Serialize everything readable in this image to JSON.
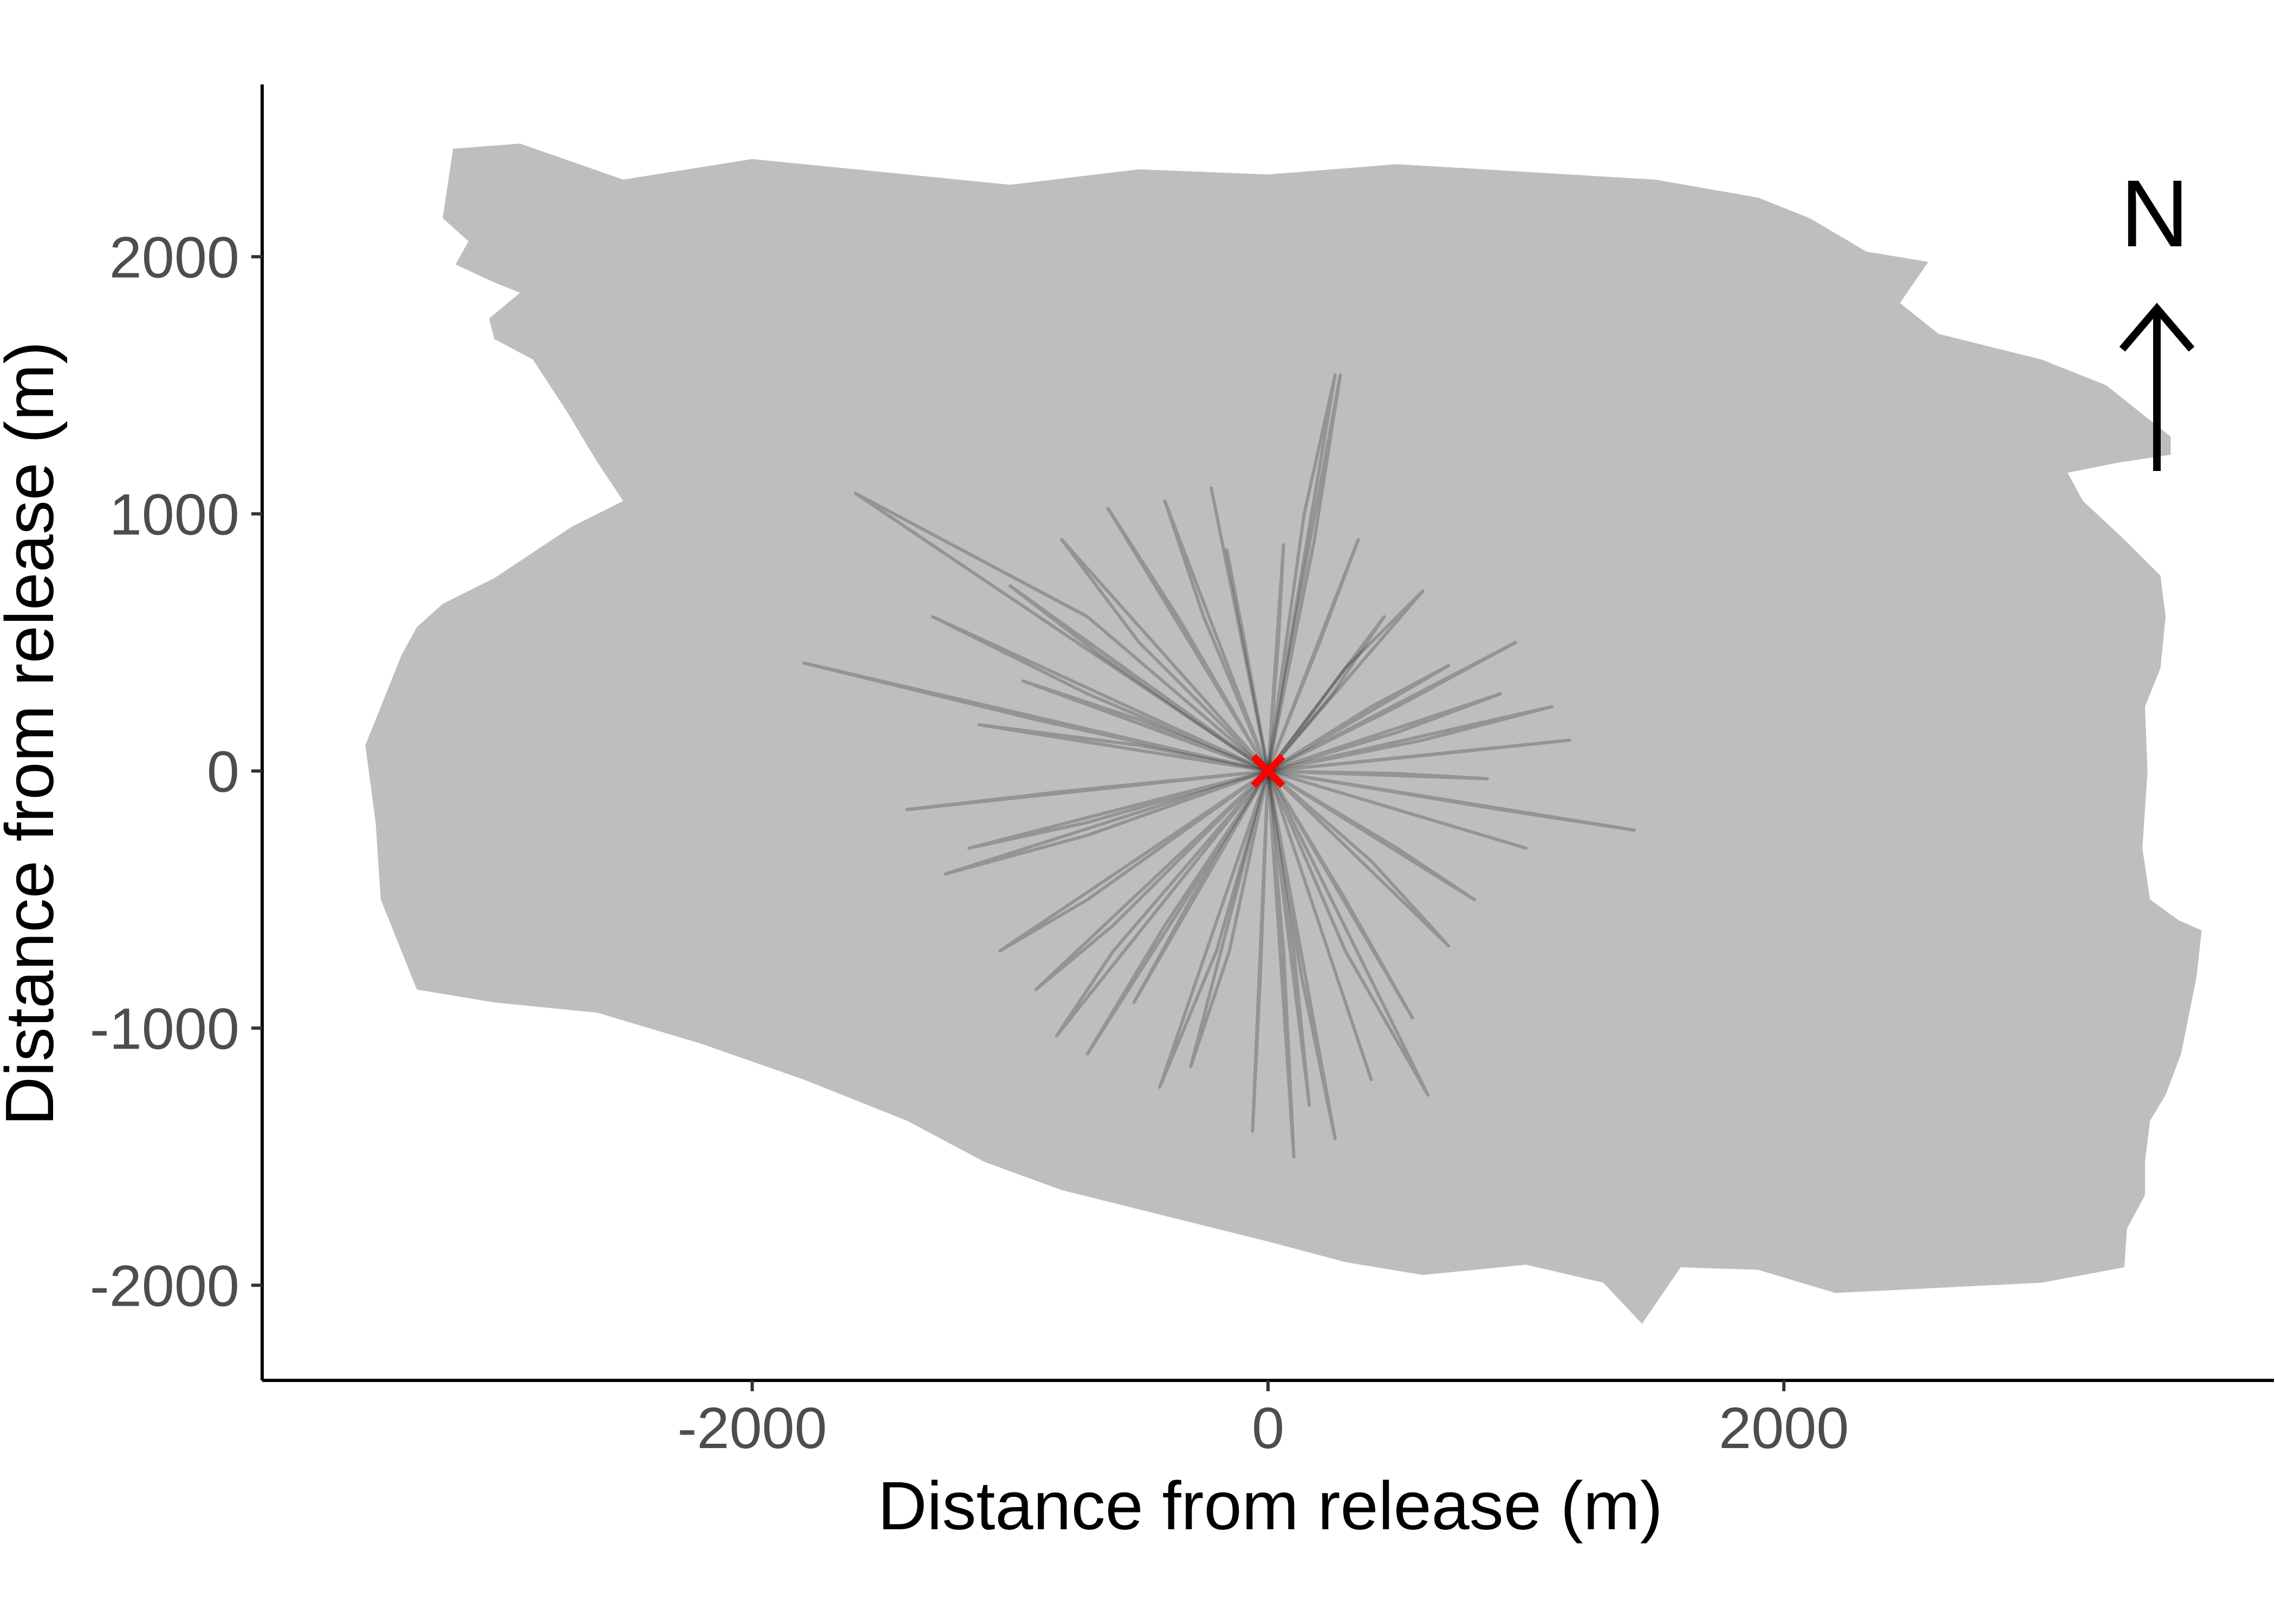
{
  "chart_data": {
    "type": "line",
    "title": "",
    "xlabel": "Distance from release (m)",
    "ylabel": "Distance from release (m)",
    "xlim": [
      -3900,
      3900
    ],
    "ylim": [
      -2370,
      2670
    ],
    "x_ticks": [
      -2000,
      0,
      2000
    ],
    "x_tick_labels": [
      "-2000",
      "0",
      "2000"
    ],
    "y_ticks": [
      -2000,
      -1000,
      0,
      1000,
      2000
    ],
    "y_tick_labels": [
      "-2000",
      "-1000",
      "0",
      "1000",
      "2000"
    ],
    "grid": false,
    "legend": "none",
    "release_point": {
      "x": 0,
      "y": 0,
      "marker": "x",
      "color": "#ff0000"
    },
    "north_arrow": {
      "label": "N",
      "placement": "top-right"
    },
    "island_outline": [
      [
        -3160,
        2420
      ],
      [
        -2900,
        2440
      ],
      [
        -2500,
        2300
      ],
      [
        -2000,
        2380
      ],
      [
        -1500,
        2330
      ],
      [
        -1000,
        2280
      ],
      [
        -500,
        2340
      ],
      [
        0,
        2320
      ],
      [
        500,
        2360
      ],
      [
        1000,
        2330
      ],
      [
        1500,
        2300
      ],
      [
        1900,
        2230
      ],
      [
        2100,
        2150
      ],
      [
        2320,
        2020
      ],
      [
        2560,
        1980
      ],
      [
        2450,
        1820
      ],
      [
        2600,
        1700
      ],
      [
        3000,
        1600
      ],
      [
        3250,
        1500
      ],
      [
        3400,
        1380
      ],
      [
        3500,
        1300
      ],
      [
        3500,
        1230
      ],
      [
        3300,
        1200
      ],
      [
        3100,
        1160
      ],
      [
        3160,
        1050
      ],
      [
        3320,
        900
      ],
      [
        3460,
        760
      ],
      [
        3480,
        600
      ],
      [
        3460,
        400
      ],
      [
        3400,
        250
      ],
      [
        3410,
        0
      ],
      [
        3390,
        -300
      ],
      [
        3420,
        -500
      ],
      [
        3530,
        -580
      ],
      [
        3620,
        -620
      ],
      [
        3600,
        -800
      ],
      [
        3540,
        -1100
      ],
      [
        3480,
        -1260
      ],
      [
        3420,
        -1360
      ],
      [
        3400,
        -1520
      ],
      [
        3400,
        -1650
      ],
      [
        3330,
        -1780
      ],
      [
        3320,
        -1930
      ],
      [
        3000,
        -1990
      ],
      [
        2600,
        -2010
      ],
      [
        2200,
        -2030
      ],
      [
        1900,
        -1940
      ],
      [
        1600,
        -1930
      ],
      [
        1450,
        -2150
      ],
      [
        1300,
        -1990
      ],
      [
        1000,
        -1920
      ],
      [
        600,
        -1960
      ],
      [
        300,
        -1910
      ],
      [
        0,
        -1830
      ],
      [
        -400,
        -1730
      ],
      [
        -800,
        -1630
      ],
      [
        -1100,
        -1520
      ],
      [
        -1400,
        -1360
      ],
      [
        -1800,
        -1200
      ],
      [
        -2200,
        -1060
      ],
      [
        -2600,
        -940
      ],
      [
        -3000,
        -900
      ],
      [
        -3300,
        -850
      ],
      [
        -3440,
        -500
      ],
      [
        -3460,
        -200
      ],
      [
        -3500,
        100
      ],
      [
        -3420,
        300
      ],
      [
        -3360,
        450
      ],
      [
        -3300,
        560
      ],
      [
        -3200,
        650
      ],
      [
        -3100,
        700
      ],
      [
        -3000,
        750
      ],
      [
        -2850,
        850
      ],
      [
        -2700,
        950
      ],
      [
        -2500,
        1050
      ],
      [
        -2600,
        1200
      ],
      [
        -2720,
        1400
      ],
      [
        -2850,
        1600
      ],
      [
        -3000,
        1680
      ],
      [
        -3020,
        1760
      ],
      [
        -2900,
        1860
      ],
      [
        -3000,
        1900
      ],
      [
        -3150,
        1970
      ],
      [
        -3100,
        2060
      ],
      [
        -3200,
        2150
      ]
    ],
    "release_tracks": [
      {
        "name": "",
        "x": [
          0,
          -1600,
          -700,
          0
        ],
        "y": [
          0,
          1080,
          600,
          0
        ]
      },
      {
        "name": "",
        "x": [
          0,
          -1800,
          -900,
          0
        ],
        "y": [
          0,
          420,
          200,
          0
        ]
      },
      {
        "name": "",
        "x": [
          0,
          140,
          260,
          0
        ],
        "y": [
          0,
          1000,
          1540,
          0
        ]
      },
      {
        "name": "",
        "x": [
          0,
          280,
          180,
          0
        ],
        "y": [
          0,
          1540,
          900,
          0
        ]
      },
      {
        "name": "",
        "x": [
          0,
          960,
          500,
          0
        ],
        "y": [
          0,
          500,
          250,
          0
        ]
      },
      {
        "name": "",
        "x": [
          0,
          1170,
          600,
          0
        ],
        "y": [
          0,
          120,
          60,
          0
        ]
      },
      {
        "name": "",
        "x": [
          0,
          1420,
          900,
          0
        ],
        "y": [
          0,
          -230,
          -150,
          0
        ]
      },
      {
        "name": "",
        "x": [
          0,
          620,
          300,
          0
        ],
        "y": [
          0,
          -1260,
          -700,
          0
        ]
      },
      {
        "name": "",
        "x": [
          0,
          260,
          130,
          0
        ],
        "y": [
          0,
          -1430,
          -800,
          0
        ]
      },
      {
        "name": "",
        "x": [
          0,
          100,
          60,
          0
        ],
        "y": [
          0,
          -1500,
          -700,
          0
        ]
      },
      {
        "name": "",
        "x": [
          0,
          -60,
          -30,
          0
        ],
        "y": [
          0,
          -1400,
          -800,
          0
        ]
      },
      {
        "name": "",
        "x": [
          0,
          -420,
          -200,
          0
        ],
        "y": [
          0,
          -1230,
          -700,
          0
        ]
      },
      {
        "name": "",
        "x": [
          0,
          -820,
          -600,
          0
        ],
        "y": [
          0,
          -1030,
          -700,
          0
        ]
      },
      {
        "name": "",
        "x": [
          0,
          -1040,
          -700,
          0
        ],
        "y": [
          0,
          -700,
          -500,
          0
        ]
      },
      {
        "name": "",
        "x": [
          0,
          -1160,
          -700,
          0
        ],
        "y": [
          0,
          -300,
          -200,
          0
        ]
      },
      {
        "name": "",
        "x": [
          0,
          -1120,
          -500,
          0
        ],
        "y": [
          0,
          180,
          100,
          0
        ]
      },
      {
        "name": "",
        "x": [
          0,
          -800,
          -500,
          0
        ],
        "y": [
          0,
          900,
          500,
          0
        ]
      },
      {
        "name": "",
        "x": [
          0,
          -400,
          -250,
          0
        ],
        "y": [
          0,
          1050,
          600,
          0
        ]
      },
      {
        "name": "",
        "x": [
          0,
          -160,
          -90,
          0
        ],
        "y": [
          0,
          860,
          500,
          0
        ]
      },
      {
        "name": "",
        "x": [
          0,
          60,
          40,
          0
        ],
        "y": [
          0,
          880,
          500,
          0
        ]
      },
      {
        "name": "",
        "x": [
          0,
          700,
          400,
          0
        ],
        "y": [
          0,
          410,
          250,
          0
        ]
      },
      {
        "name": "",
        "x": [
          0,
          850,
          500,
          0
        ],
        "y": [
          0,
          -30,
          -10,
          0
        ]
      },
      {
        "name": "",
        "x": [
          0,
          700,
          400,
          0
        ],
        "y": [
          0,
          -680,
          -350,
          0
        ]
      },
      {
        "name": "",
        "x": [
          0,
          560,
          300,
          0
        ],
        "y": [
          0,
          -960,
          -500,
          0
        ]
      },
      {
        "name": "",
        "x": [
          0,
          -1000,
          -650,
          0
        ],
        "y": [
          0,
          720,
          450,
          0
        ]
      },
      {
        "name": "",
        "x": [
          0,
          -620,
          -350,
          0
        ],
        "y": [
          0,
          1020,
          600,
          0
        ]
      },
      {
        "name": "",
        "x": [
          0,
          -1250,
          -700,
          0
        ],
        "y": [
          0,
          -400,
          -250,
          0
        ]
      },
      {
        "name": "",
        "x": [
          0,
          -900,
          -600,
          0
        ],
        "y": [
          0,
          -850,
          -600,
          0
        ]
      },
      {
        "name": "",
        "x": [
          0,
          -300,
          -150,
          0
        ],
        "y": [
          0,
          -1150,
          -700,
          0
        ]
      },
      {
        "name": "",
        "x": [
          0,
          400,
          200,
          0
        ],
        "y": [
          0,
          -1200,
          -600,
          0
        ]
      },
      {
        "name": "",
        "x": [
          0,
          1000,
          500,
          0
        ],
        "y": [
          0,
          -300,
          -150,
          0
        ]
      },
      {
        "name": "",
        "x": [
          0,
          1100,
          600,
          0
        ],
        "y": [
          0,
          250,
          120,
          0
        ]
      },
      {
        "name": "",
        "x": [
          0,
          600,
          300,
          0
        ],
        "y": [
          0,
          700,
          400,
          0
        ]
      },
      {
        "name": "",
        "x": [
          0,
          350,
          200,
          0
        ],
        "y": [
          0,
          900,
          500,
          0
        ]
      },
      {
        "name": "",
        "x": [
          0,
          -220,
          -120,
          0
        ],
        "y": [
          0,
          1100,
          600,
          0
        ]
      },
      {
        "name": "",
        "x": [
          0,
          -1300,
          -700,
          0
        ],
        "y": [
          0,
          600,
          300,
          0
        ]
      },
      {
        "name": "",
        "x": [
          0,
          -1400,
          -800,
          0
        ],
        "y": [
          0,
          -150,
          -80,
          0
        ]
      },
      {
        "name": "",
        "x": [
          0,
          -700,
          -400,
          0
        ],
        "y": [
          0,
          -1100,
          -600,
          0
        ]
      },
      {
        "name": "",
        "x": [
          0,
          160,
          100,
          0
        ],
        "y": [
          0,
          -1300,
          -700,
          0
        ]
      },
      {
        "name": "",
        "x": [
          0,
          800,
          500,
          0
        ],
        "y": [
          0,
          -500,
          -300,
          0
        ]
      },
      {
        "name": "",
        "x": [
          0,
          900,
          500,
          0
        ],
        "y": [
          0,
          300,
          150,
          0
        ]
      },
      {
        "name": "",
        "x": [
          0,
          -520,
          -300,
          0
        ],
        "y": [
          0,
          -900,
          -500,
          0
        ]
      },
      {
        "name": "",
        "x": [
          0,
          -950,
          -500,
          0
        ],
        "y": [
          0,
          350,
          200,
          0
        ]
      },
      {
        "name": "",
        "x": [
          0,
          450,
          250,
          0
        ],
        "y": [
          0,
          600,
          300,
          0
        ]
      }
    ]
  }
}
